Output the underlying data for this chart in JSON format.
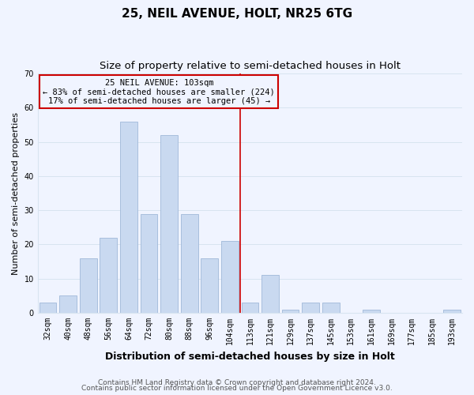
{
  "title": "25, NEIL AVENUE, HOLT, NR25 6TG",
  "subtitle": "Size of property relative to semi-detached houses in Holt",
  "xlabel": "Distribution of semi-detached houses by size in Holt",
  "ylabel": "Number of semi-detached properties",
  "bar_labels": [
    "32sqm",
    "40sqm",
    "48sqm",
    "56sqm",
    "64sqm",
    "72sqm",
    "80sqm",
    "88sqm",
    "96sqm",
    "104sqm",
    "113sqm",
    "121sqm",
    "129sqm",
    "137sqm",
    "145sqm",
    "153sqm",
    "161sqm",
    "169sqm",
    "177sqm",
    "185sqm",
    "193sqm"
  ],
  "bar_values": [
    3,
    5,
    16,
    22,
    56,
    29,
    52,
    29,
    16,
    21,
    3,
    11,
    1,
    3,
    3,
    0,
    1,
    0,
    0,
    0,
    1
  ],
  "bar_color": "#c9d9f0",
  "bar_edge_color": "#a0b8d8",
  "property_line_x": 9.5,
  "annotation_text_line1": "25 NEIL AVENUE: 103sqm",
  "annotation_text_line2": "← 83% of semi-detached houses are smaller (224)",
  "annotation_text_line3": "17% of semi-detached houses are larger (45) →",
  "ylim": [
    0,
    70
  ],
  "yticks": [
    0,
    10,
    20,
    30,
    40,
    50,
    60,
    70
  ],
  "grid_color": "#d8e4f0",
  "background_color": "#f0f4ff",
  "footer_line1": "Contains HM Land Registry data © Crown copyright and database right 2024.",
  "footer_line2": "Contains public sector information licensed under the Open Government Licence v3.0.",
  "property_line_color": "#cc0000",
  "annotation_box_edge_color": "#cc0000",
  "title_fontsize": 11,
  "subtitle_fontsize": 9.5,
  "xlabel_fontsize": 9,
  "ylabel_fontsize": 8,
  "tick_fontsize": 7,
  "footer_fontsize": 6.5
}
